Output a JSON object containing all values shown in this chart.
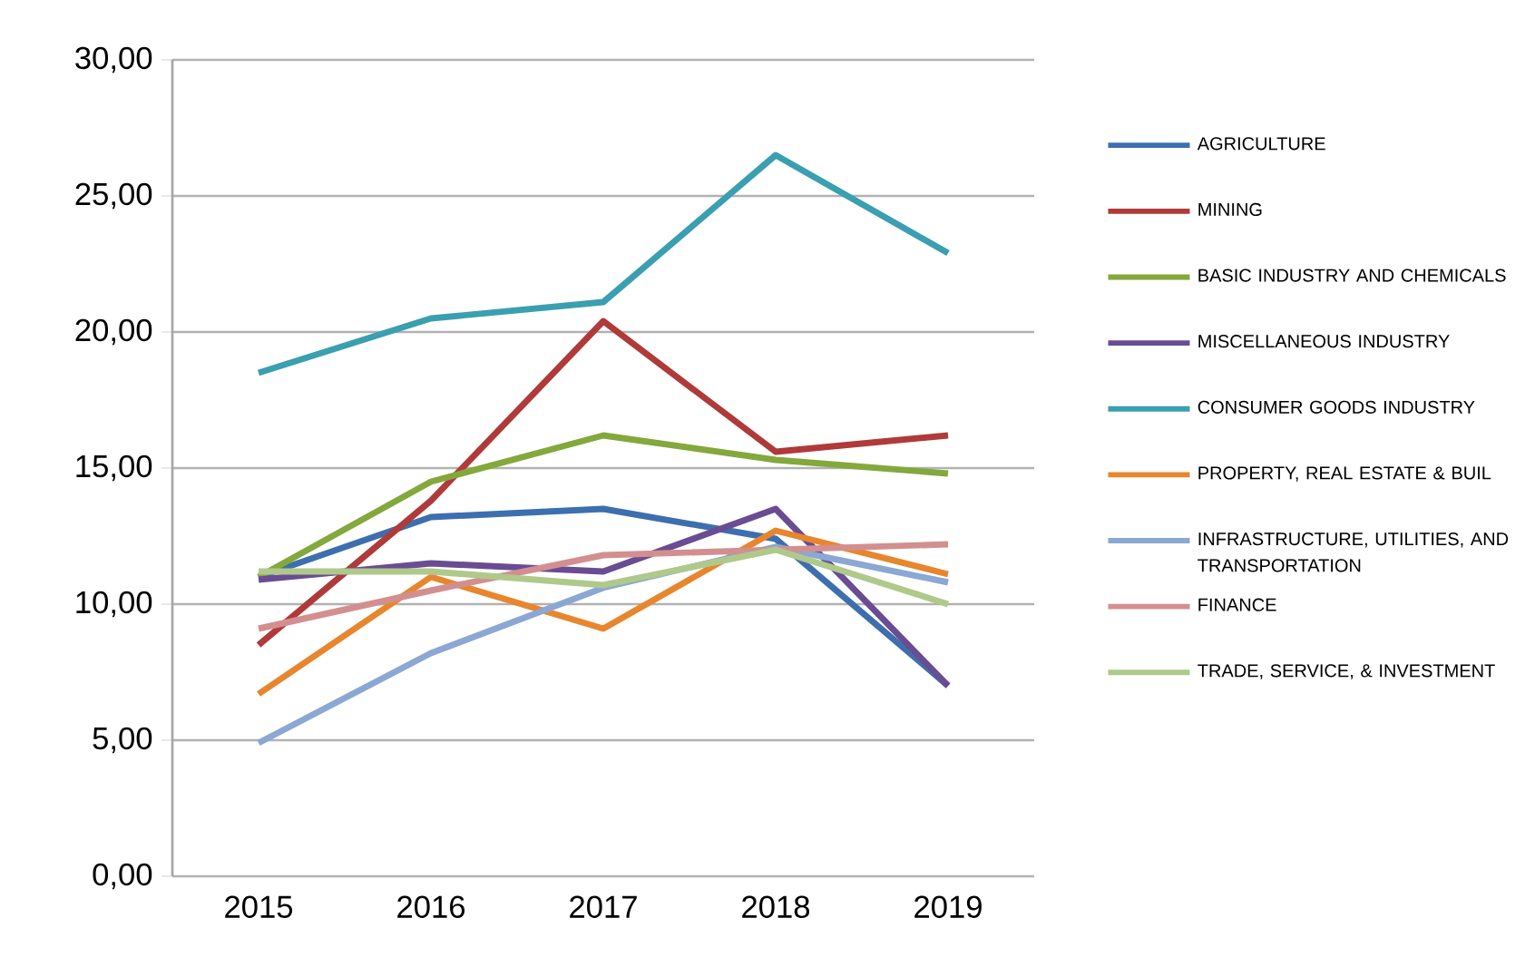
{
  "chart_data": {
    "type": "line",
    "categories": [
      "2015",
      "2016",
      "2017",
      "2018",
      "2019"
    ],
    "ylim": [
      0,
      30
    ],
    "yticks": [
      {
        "value": 0,
        "label": "0,00"
      },
      {
        "value": 5,
        "label": "5,00"
      },
      {
        "value": 10,
        "label": "10,00"
      },
      {
        "value": 15,
        "label": "15,00"
      },
      {
        "value": 20,
        "label": "20,00"
      },
      {
        "value": 25,
        "label": "25,00"
      },
      {
        "value": 30,
        "label": "30,00"
      }
    ],
    "grid": "y",
    "legend": "right",
    "marker": "none",
    "line_style": "solid",
    "series": [
      {
        "name": "AGRICULTURE",
        "color": "#3d6faf",
        "values": [
          11.0,
          13.2,
          13.5,
          12.4,
          7.0
        ]
      },
      {
        "name": "MINING",
        "color": "#b03a3a",
        "values": [
          8.5,
          13.8,
          20.4,
          15.6,
          16.2
        ]
      },
      {
        "name": "BASIC INDUSTRY AND CHEMICALS",
        "color": "#83a83c",
        "values": [
          11.0,
          14.5,
          16.2,
          15.3,
          14.8
        ]
      },
      {
        "name": "MISCELLANEOUS INDUSTRY",
        "color": "#6a4c93",
        "values": [
          10.9,
          11.5,
          11.2,
          13.5,
          7.0
        ]
      },
      {
        "name": "CONSUMER GOODS INDUSTRY",
        "color": "#3a9fb0",
        "values": [
          18.5,
          20.5,
          21.1,
          26.5,
          22.9
        ]
      },
      {
        "name": "PROPERTY, REAL ESTATE & BUIL",
        "color": "#e8862e",
        "values": [
          6.7,
          11.0,
          9.1,
          12.7,
          11.1
        ]
      },
      {
        "name": "INFRASTRUCTURE, UTILITIES, AND TRANSPORTATION",
        "color": "#8ba7d4",
        "values": [
          4.9,
          8.2,
          10.6,
          12.1,
          10.8
        ]
      },
      {
        "name": "FINANCE",
        "color": "#d38f8f",
        "values": [
          9.1,
          10.5,
          11.8,
          12.0,
          12.2
        ]
      },
      {
        "name": "TRADE, SERVICE, & INVESTMENT",
        "color": "#afc98a",
        "values": [
          11.2,
          11.2,
          10.7,
          12.0,
          10.0
        ]
      }
    ]
  }
}
